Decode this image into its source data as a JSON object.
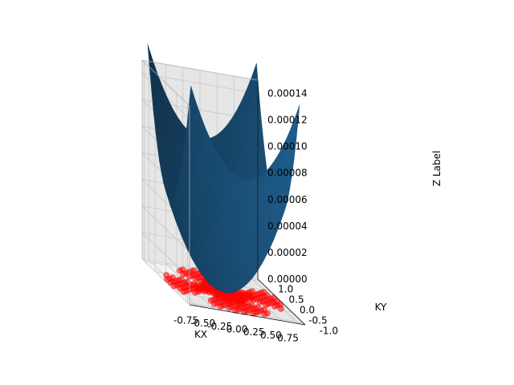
{
  "chart_data": {
    "type": "surface3d",
    "title": "",
    "xlabel": "KX",
    "ylabel": "KY",
    "zlabel": "Z Label",
    "xlim": [
      -0.85,
      0.85
    ],
    "ylim": [
      -1.1,
      1.1
    ],
    "zlim": [
      0.0,
      0.00015
    ],
    "x_ticks": [
      "-0.75",
      "-0.50",
      "-0.25",
      "0.00",
      "0.25",
      "0.50",
      "0.75"
    ],
    "y_ticks": [
      "-1.0",
      "-0.5",
      "0.0",
      "0.5",
      "1.0"
    ],
    "z_ticks": [
      "0.00000",
      "0.00002",
      "0.00004",
      "0.00006",
      "0.00008",
      "0.00010",
      "0.00012",
      "0.00014"
    ],
    "grid": true,
    "surface": {
      "function": "z = 0.0001 * (kx^2 + ky^2)",
      "kx_range": [
        -0.8,
        0.8
      ],
      "ky_range": [
        -1.0,
        1.0
      ],
      "color": "#1f5f8f"
    },
    "scatter": {
      "description": "red points lying on plane z = 0",
      "color": "#ff0000"
    },
    "colors": {
      "pane": "#f2f2f2",
      "pane_dark": "#e6e6e6",
      "grid": "#c8c8c8",
      "surface": "#1f6090",
      "scatter": "#ff0000"
    }
  }
}
